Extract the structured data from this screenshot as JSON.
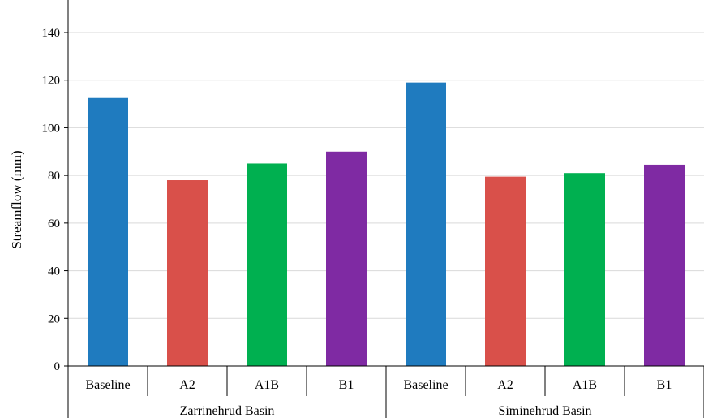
{
  "chart_data": {
    "type": "bar",
    "title": "",
    "xlabel": "",
    "ylabel": "Streamflow (mm)",
    "ylim": [
      0,
      150
    ],
    "yticks": [
      0,
      20,
      40,
      60,
      80,
      100,
      120,
      140
    ],
    "grid": true,
    "legend": "none",
    "groups": [
      {
        "label": "Zarrinehrud Basin",
        "bars": [
          {
            "category": "Baseline",
            "value": 112.5,
            "color": "#1f7bbf"
          },
          {
            "category": "A2",
            "value": 78,
            "color": "#d9504a"
          },
          {
            "category": "A1B",
            "value": 85,
            "color": "#00b050"
          },
          {
            "category": "B1",
            "value": 90,
            "color": "#7f2aa3"
          }
        ]
      },
      {
        "label": "Siminehrud Basin",
        "bars": [
          {
            "category": "Baseline",
            "value": 119,
            "color": "#1f7bbf"
          },
          {
            "category": "A2",
            "value": 79.5,
            "color": "#d9504a"
          },
          {
            "category": "A1B",
            "value": 81,
            "color": "#00b050"
          },
          {
            "category": "B1",
            "value": 84.5,
            "color": "#7f2aa3"
          }
        ]
      }
    ]
  }
}
